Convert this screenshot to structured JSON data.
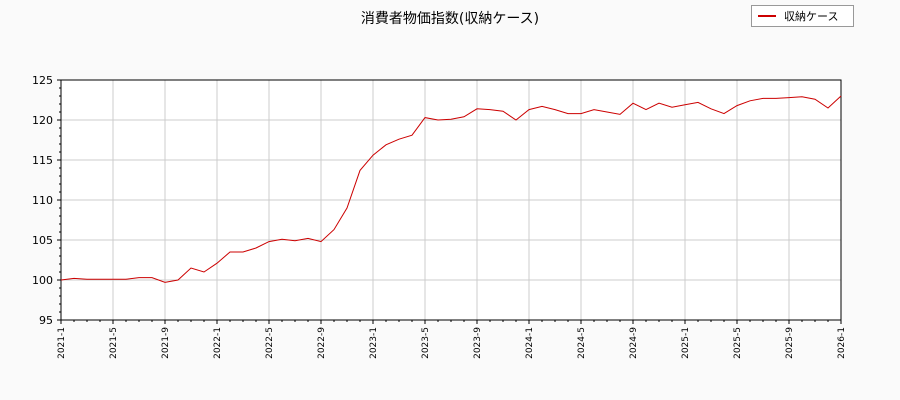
{
  "chart_data": {
    "type": "line",
    "title": "消費者物価指数(収納ケース)",
    "xlabel": "",
    "ylabel": "",
    "ylim": [
      95,
      125
    ],
    "yticks": [
      "95",
      "100",
      "105",
      "110",
      "115",
      "120",
      "125"
    ],
    "xticks": [
      "2021-1",
      "2021-5",
      "2021-9",
      "2022-1",
      "2022-5",
      "2022-9",
      "2023-1",
      "2023-5",
      "2023-9",
      "2024-1",
      "2024-5",
      "2024-9",
      "2025-1",
      "2025-5",
      "2025-9",
      "2026-1"
    ],
    "grid": true,
    "legend_position": "top-right",
    "series": [
      {
        "name": "収納ケース",
        "color": "#cc0000",
        "x": [
          "2021-1",
          "2021-2",
          "2021-3",
          "2021-4",
          "2021-5",
          "2021-6",
          "2021-7",
          "2021-8",
          "2021-9",
          "2021-10",
          "2021-11",
          "2021-12",
          "2022-1",
          "2022-2",
          "2022-3",
          "2022-4",
          "2022-5",
          "2022-6",
          "2022-7",
          "2022-8",
          "2022-9",
          "2022-10",
          "2022-11",
          "2022-12",
          "2023-1",
          "2023-2",
          "2023-3",
          "2023-4",
          "2023-5",
          "2023-6",
          "2023-7",
          "2023-8",
          "2023-9",
          "2023-10",
          "2023-11",
          "2023-12",
          "2024-1",
          "2024-2",
          "2024-3",
          "2024-4",
          "2024-5",
          "2024-6",
          "2024-7",
          "2024-8",
          "2024-9",
          "2024-10",
          "2024-11",
          "2024-12",
          "2025-1",
          "2025-2",
          "2025-3",
          "2025-4",
          "2025-5",
          "2025-6",
          "2025-7",
          "2025-8",
          "2025-9",
          "2025-10",
          "2025-11",
          "2025-12",
          "2026-1"
        ],
        "values": [
          100.0,
          100.2,
          100.1,
          100.1,
          100.1,
          100.1,
          100.3,
          100.3,
          99.7,
          100.0,
          101.5,
          101.0,
          102.1,
          103.5,
          103.5,
          104.0,
          104.8,
          105.1,
          104.9,
          105.2,
          104.8,
          106.3,
          109.0,
          113.7,
          115.6,
          116.9,
          117.6,
          118.1,
          120.3,
          120.0,
          120.1,
          120.4,
          121.4,
          121.3,
          121.1,
          120.0,
          121.3,
          121.7,
          121.3,
          120.8,
          120.8,
          121.3,
          121.0,
          120.7,
          122.1,
          121.3,
          122.1,
          121.6,
          121.9,
          122.2,
          121.4,
          120.8,
          121.8,
          122.4,
          122.7,
          122.7,
          122.8,
          122.9,
          122.6,
          121.5,
          123.0
        ]
      }
    ]
  }
}
